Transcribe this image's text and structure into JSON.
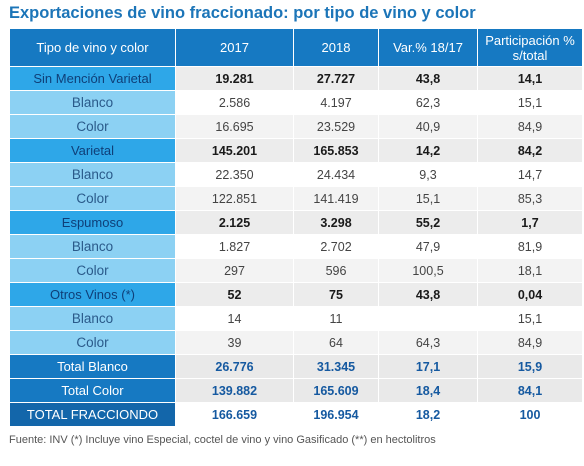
{
  "title": "Exportaciones de vino fraccionado: por tipo de vino y color",
  "headers": [
    "Tipo de vino y color",
    "2017",
    "2018",
    "Var.% 18/17",
    "Participación % s/total"
  ],
  "rows": [
    {
      "kind": "cat",
      "cells": [
        "Sin Mención Varietal",
        "19.281",
        "27.727",
        "43,8",
        "14,1"
      ]
    },
    {
      "kind": "sub",
      "cells": [
        "Blanco",
        "2.586",
        "4.197",
        "62,3",
        "15,1"
      ]
    },
    {
      "kind": "sub alt",
      "cells": [
        "Color",
        "16.695",
        "23.529",
        "40,9",
        "84,9"
      ]
    },
    {
      "kind": "cat",
      "cells": [
        "Varietal",
        "145.201",
        "165.853",
        "14,2",
        "84,2"
      ]
    },
    {
      "kind": "sub",
      "cells": [
        "Blanco",
        "22.350",
        "24.434",
        "9,3",
        "14,7"
      ]
    },
    {
      "kind": "sub alt",
      "cells": [
        "Color",
        "122.851",
        "141.419",
        "15,1",
        "85,3"
      ]
    },
    {
      "kind": "cat",
      "cells": [
        "Espumoso",
        "2.125",
        "3.298",
        "55,2",
        "1,7"
      ]
    },
    {
      "kind": "sub",
      "cells": [
        "Blanco",
        "1.827",
        "2.702",
        "47,9",
        "81,9"
      ]
    },
    {
      "kind": "sub alt",
      "cells": [
        "Color",
        "297",
        "596",
        "100,5",
        "18,1"
      ]
    },
    {
      "kind": "cat",
      "cells": [
        "Otros Vinos (*)",
        "52",
        "75",
        "43,8",
        "0,04"
      ]
    },
    {
      "kind": "sub",
      "cells": [
        "Blanco",
        "14",
        "11",
        "",
        "15,1"
      ]
    },
    {
      "kind": "sub alt",
      "cells": [
        "Color",
        "39",
        "64",
        "64,3",
        "84,9"
      ]
    },
    {
      "kind": "tot",
      "cells": [
        "Total Blanco",
        "26.776",
        "31.345",
        "17,1",
        "15,9"
      ]
    },
    {
      "kind": "tot",
      "cells": [
        "Total Color",
        "139.882",
        "165.609",
        "18,4",
        "84,1"
      ]
    },
    {
      "kind": "grand",
      "cells": [
        "TOTAL FRACCIONDO",
        "166.659",
        "196.954",
        "18,2",
        "100"
      ]
    }
  ],
  "footnote": "Fuente: INV (*) Incluye vino Especial, coctel de vino y vino Gasificado (**)  en hectolitros"
}
